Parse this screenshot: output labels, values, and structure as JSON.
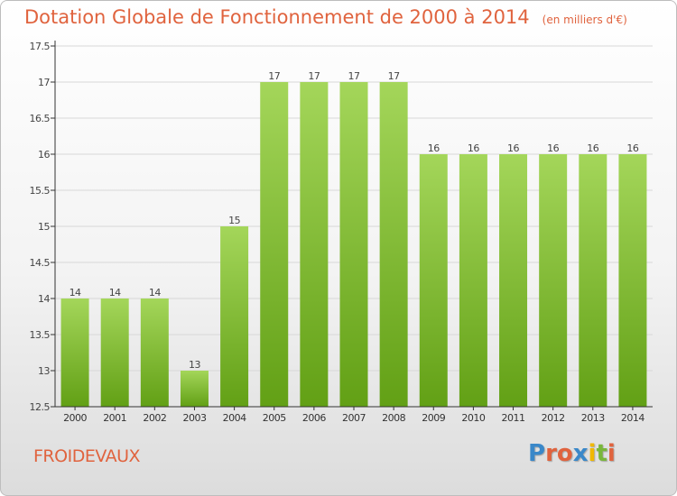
{
  "header": {
    "title": "Dotation Globale de Fonctionnement de 2000 à 2014",
    "unit": "(en milliers d'€)"
  },
  "footer": {
    "commune": "FROIDEVAUX",
    "logo": {
      "letters": [
        "P",
        "r",
        "o",
        "x",
        "i",
        "t",
        "i"
      ],
      "colors": [
        "#3a88c9",
        "#e0633e",
        "#e0633e",
        "#3a88c9",
        "#f0b800",
        "#79b73a",
        "#e0633e"
      ]
    }
  },
  "chart_data": {
    "type": "bar",
    "categories": [
      "2000",
      "2001",
      "2002",
      "2003",
      "2004",
      "2005",
      "2006",
      "2007",
      "2008",
      "2009",
      "2010",
      "2011",
      "2012",
      "2013",
      "2014"
    ],
    "values": [
      14,
      14,
      14,
      13,
      15,
      17,
      17,
      17,
      17,
      16,
      16,
      16,
      16,
      16,
      16
    ],
    "data_labels": [
      "14",
      "14",
      "14",
      "13",
      "15",
      "17",
      "17",
      "17",
      "17",
      "16",
      "16",
      "16",
      "16",
      "16",
      "16"
    ],
    "yticks": [
      12.5,
      13,
      13.5,
      14,
      14.5,
      15,
      15.5,
      16,
      16.5,
      17,
      17.5
    ],
    "ytick_labels": [
      "12.5",
      "13",
      "13.5",
      "14",
      "14.5",
      "15",
      "15.5",
      "16",
      "16.5",
      "17",
      "17.5"
    ],
    "ylim": [
      12.5,
      17.5
    ],
    "xlabel": "",
    "ylabel": "",
    "grid": true,
    "colors": {
      "bar_light": "#a4d65a",
      "bar_dark": "#62a015",
      "grid": "#d8d8d8",
      "axis": "#333333"
    }
  }
}
